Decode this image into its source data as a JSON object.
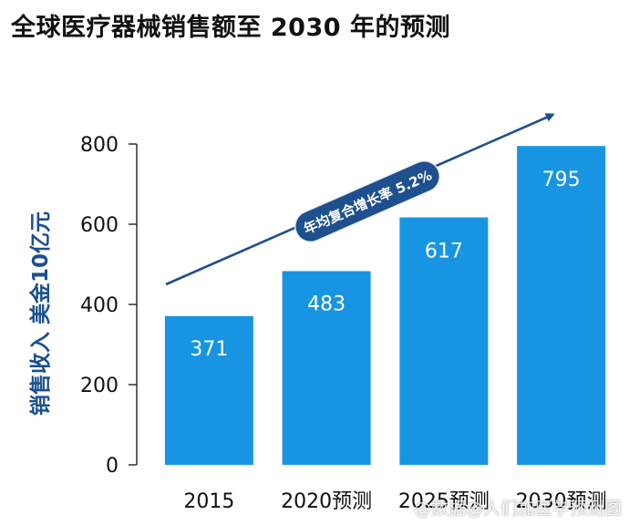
{
  "title": "全球医疗器械销售额至 2030 年的预测",
  "watermark": "@数据@人们加医学预测图",
  "colors": {
    "bar": "#1795e3",
    "arrow": "#1e4f8f",
    "badge": "#1e4f8f",
    "axis_text": "#111111",
    "ylabel": "#1a4f8f"
  },
  "chart_data": {
    "type": "bar",
    "title": "全球医疗器械销售额至 2030 年的预测",
    "ylabel": "销售收入   美金10亿元",
    "xlabel": "",
    "categories": [
      "2015",
      "2020预测",
      "2025预测",
      "2030预测"
    ],
    "values": [
      371,
      483,
      617,
      795
    ],
    "ylim": [
      0,
      800
    ],
    "yticks": [
      0,
      200,
      400,
      600,
      800
    ],
    "grid": false,
    "annotation": "年均复合增长率 5.2%"
  }
}
